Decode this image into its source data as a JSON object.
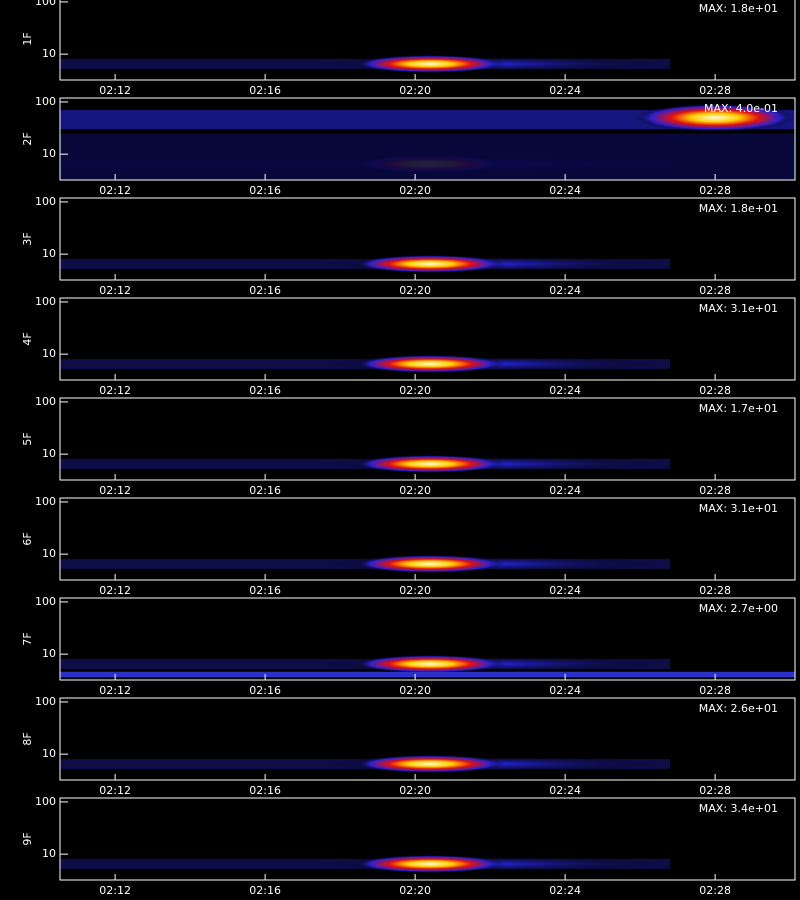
{
  "chart_data": {
    "type": "spectrogram",
    "log_y": true,
    "xlim": [
      10.53,
      30.13
    ],
    "xticks": [
      {
        "value": 12,
        "label": "02:12"
      },
      {
        "value": 16,
        "label": "02:16"
      },
      {
        "value": 20,
        "label": "02:20"
      },
      {
        "value": 24,
        "label": "02:24"
      },
      {
        "value": 28,
        "label": "02:28"
      }
    ],
    "ylim": [
      3.2,
      119
    ],
    "yticks": [
      10,
      100
    ],
    "panels": [
      {
        "label": "1F",
        "max": "MAX: 1.8e+01"
      },
      {
        "label": "2F",
        "max": "MAX: 4.0e-01"
      },
      {
        "label": "3F",
        "max": "MAX: 1.8e+01"
      },
      {
        "label": "4F",
        "max": "MAX: 3.1e+01"
      },
      {
        "label": "5F",
        "max": "MAX: 1.7e+01"
      },
      {
        "label": "6F",
        "max": "MAX: 3.1e+01"
      },
      {
        "label": "7F",
        "max": "MAX: 2.7e+00"
      },
      {
        "label": "8F",
        "max": "MAX: 2.6e+01"
      },
      {
        "label": "9F",
        "max": "MAX: 3.4e+01"
      }
    ]
  }
}
